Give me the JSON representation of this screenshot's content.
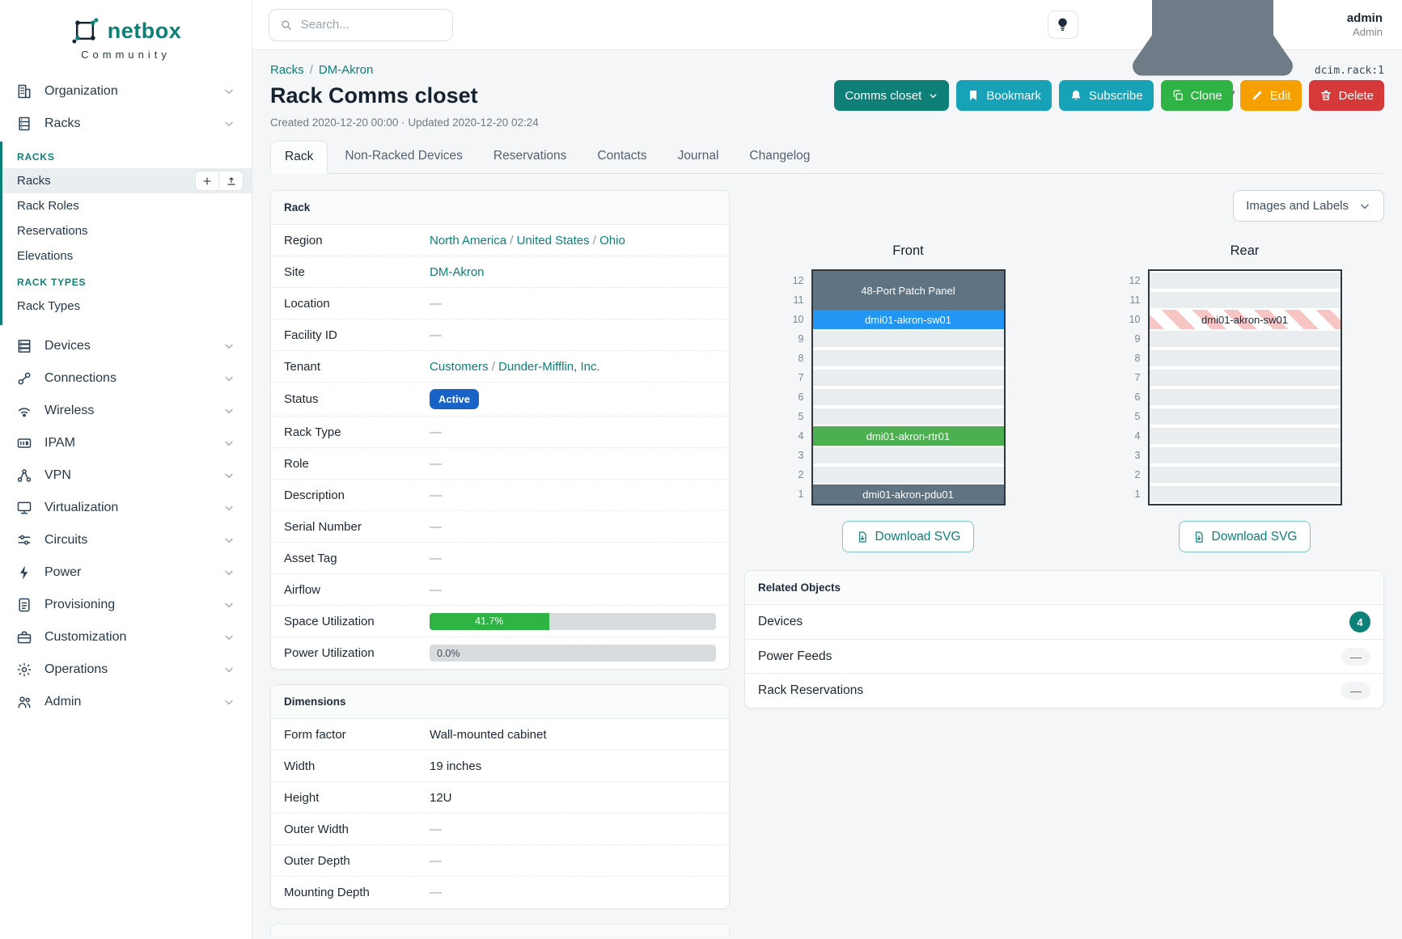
{
  "brand": {
    "name": "netbox",
    "tagline": "Community"
  },
  "topbar": {
    "search_placeholder": "Search...",
    "user": {
      "name": "admin",
      "role": "Admin"
    }
  },
  "sidebar": {
    "top_items": [
      {
        "label": "Organization",
        "icon": "building-icon"
      },
      {
        "label": "Racks",
        "icon": "rack-icon"
      }
    ],
    "racks_submenu": [
      {
        "type": "header",
        "label": "RACKS"
      },
      {
        "type": "item",
        "label": "Racks",
        "active": true,
        "actions": [
          "plus-icon",
          "import-icon"
        ]
      },
      {
        "type": "item",
        "label": "Rack Roles"
      },
      {
        "type": "item",
        "label": "Reservations"
      },
      {
        "type": "item",
        "label": "Elevations"
      },
      {
        "type": "header",
        "label": "RACK TYPES"
      },
      {
        "type": "item",
        "label": "Rack Types"
      }
    ],
    "bottom_items": [
      {
        "label": "Devices",
        "icon": "devices-icon"
      },
      {
        "label": "Connections",
        "icon": "connections-icon"
      },
      {
        "label": "Wireless",
        "icon": "wireless-icon"
      },
      {
        "label": "IPAM",
        "icon": "ipam-icon"
      },
      {
        "label": "VPN",
        "icon": "vpn-icon"
      },
      {
        "label": "Virtualization",
        "icon": "virtualization-icon"
      },
      {
        "label": "Circuits",
        "icon": "circuits-icon"
      },
      {
        "label": "Power",
        "icon": "power-icon"
      },
      {
        "label": "Provisioning",
        "icon": "provisioning-icon"
      },
      {
        "label": "Customization",
        "icon": "customization-icon"
      },
      {
        "label": "Operations",
        "icon": "operations-icon"
      },
      {
        "label": "Admin",
        "icon": "admin-icon"
      }
    ]
  },
  "page": {
    "breadcrumb": [
      "Racks",
      "DM-Akron"
    ],
    "object_id": "dcim.rack:1",
    "title": "Rack Comms closet",
    "meta": "Created 2020-12-20 00:00 · Updated 2020-12-20 02:24",
    "actions": {
      "context": "Comms closet",
      "bookmark": "Bookmark",
      "subscribe": "Subscribe",
      "clone": "Clone",
      "edit": "Edit",
      "delete": "Delete"
    },
    "tabs": [
      {
        "label": "Rack",
        "active": true
      },
      {
        "label": "Non-Racked Devices"
      },
      {
        "label": "Reservations"
      },
      {
        "label": "Contacts"
      },
      {
        "label": "Journal"
      },
      {
        "label": "Changelog"
      }
    ]
  },
  "rack_panel": {
    "title": "Rack",
    "rows": [
      {
        "label": "Region",
        "type": "links",
        "links": [
          "North America",
          "United States",
          "Ohio"
        ]
      },
      {
        "label": "Site",
        "type": "links",
        "links": [
          "DM-Akron"
        ]
      },
      {
        "label": "Location",
        "type": "dash"
      },
      {
        "label": "Facility ID",
        "type": "dash"
      },
      {
        "label": "Tenant",
        "type": "links",
        "links": [
          "Customers",
          "Dunder-Mifflin, Inc."
        ]
      },
      {
        "label": "Status",
        "type": "badge",
        "value": "Active",
        "color": "#1a63c6"
      },
      {
        "label": "Rack Type",
        "type": "dash"
      },
      {
        "label": "Role",
        "type": "dash"
      },
      {
        "label": "Description",
        "type": "dash"
      },
      {
        "label": "Serial Number",
        "type": "dash"
      },
      {
        "label": "Asset Tag",
        "type": "dash"
      },
      {
        "label": "Airflow",
        "type": "dash"
      },
      {
        "label": "Space Utilization",
        "type": "progress",
        "percent": 41.7,
        "display": "41.7%",
        "color": "#2fb344"
      },
      {
        "label": "Power Utilization",
        "type": "progress",
        "percent": 0,
        "display": "0.0%",
        "color": "#2fb344"
      }
    ]
  },
  "dimensions_panel": {
    "title": "Dimensions",
    "rows": [
      {
        "label": "Form factor",
        "type": "text",
        "value": "Wall-mounted cabinet"
      },
      {
        "label": "Width",
        "type": "text",
        "value": "19 inches"
      },
      {
        "label": "Height",
        "type": "text",
        "value": "12U"
      },
      {
        "label": "Outer Width",
        "type": "dash"
      },
      {
        "label": "Outer Depth",
        "type": "dash"
      },
      {
        "label": "Mounting Depth",
        "type": "dash"
      }
    ]
  },
  "elevations": {
    "view_toggle_label": "Images and Labels",
    "download_label": "Download SVG",
    "units_total": 12,
    "front": {
      "title": "Front",
      "slots": [
        {
          "top_unit": 12,
          "span": 2,
          "label": "48-Port Patch Panel",
          "color": "#5f7382",
          "text_color": "#ffffff"
        },
        {
          "top_unit": 10,
          "span": 1,
          "label": "dmi01-akron-sw01",
          "color": "#2196f3",
          "text_color": "#ffffff"
        },
        {
          "top_unit": 4,
          "span": 1,
          "label": "dmi01-akron-rtr01",
          "color": "#4caf50",
          "text_color": "#ffffff"
        },
        {
          "top_unit": 1,
          "span": 1,
          "label": "dmi01-akron-pdu01",
          "color": "#5f7382",
          "text_color": "#ffffff"
        }
      ]
    },
    "rear": {
      "title": "Rear",
      "slots": [
        {
          "top_unit": 10,
          "span": 1,
          "label": "dmi01-akron-sw01",
          "hatched": true,
          "text_color": "#1f2d3d"
        }
      ]
    }
  },
  "related_objects": {
    "title": "Related Objects",
    "rows": [
      {
        "label": "Devices",
        "count": "4"
      },
      {
        "label": "Power Feeds",
        "count": null
      },
      {
        "label": "Rack Reservations",
        "count": null
      }
    ]
  },
  "colors": {
    "brand_teal": "#0d8077",
    "status_active_blue": "#1a63c6",
    "utilization_green": "#2fb344",
    "button_cyan": "#17a2b8",
    "button_green": "#2fb344",
    "button_orange": "#f59f00",
    "button_red": "#d63939"
  }
}
